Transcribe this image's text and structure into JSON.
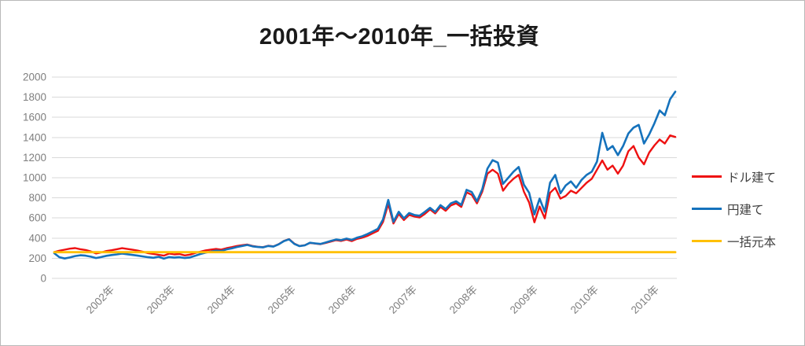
{
  "title": "2001年～2010年_一括投資",
  "colors": {
    "dollar_line": "#ee1111",
    "yen_line": "#1572bc",
    "principal_line": "#ffc000",
    "gridline": "#d9d9d9",
    "axis_text": "#7f7f7f",
    "title_text": "#1a1a1a"
  },
  "legend": [
    {
      "label": "ドル建て",
      "color": "#ee1111"
    },
    {
      "label": "円建て",
      "color": "#1572bc"
    },
    {
      "label": "一括元本",
      "color": "#ffc000"
    }
  ],
  "chart_data": {
    "type": "line",
    "title": "2001年～2010年_一括投資",
    "xlabel": "",
    "ylabel": "",
    "ylim": [
      0,
      2000
    ],
    "ytick_step": 200,
    "ytick_labels": [
      "0",
      "200",
      "400",
      "600",
      "800",
      "1000",
      "1200",
      "1400",
      "1600",
      "1800",
      "2000"
    ],
    "x_tick_labels": [
      "2002年",
      "2003年",
      "2004年",
      "2005年",
      "2006年",
      "2007年",
      "2008年",
      "2009年",
      "2010年",
      "2010年"
    ],
    "x_start": "2001-01",
    "x_end": "2010-12",
    "x_resolution": "monthly",
    "grid": "horizontal",
    "legend_position": "right",
    "series": [
      {
        "name": "ドル建て",
        "color": "#ee1111",
        "values": [
          262,
          275,
          285,
          295,
          301,
          290,
          282,
          268,
          248,
          258,
          272,
          280,
          290,
          300,
          292,
          284,
          276,
          264,
          250,
          242,
          234,
          226,
          246,
          238,
          242,
          228,
          236,
          252,
          266,
          278,
          286,
          292,
          286,
          300,
          310,
          322,
          330,
          336,
          322,
          314,
          310,
          324,
          318,
          340,
          372,
          390,
          345,
          322,
          330,
          352,
          346,
          340,
          352,
          366,
          380,
          372,
          386,
          370,
          392,
          404,
          422,
          448,
          472,
          560,
          740,
          545,
          640,
          580,
          630,
          615,
          605,
          640,
          685,
          645,
          710,
          672,
          725,
          745,
          710,
          855,
          830,
          745,
          860,
          1040,
          1080,
          1041,
          871,
          940,
          990,
          1028,
          860,
          753,
          557,
          714,
          596,
          850,
          900,
          792,
          819,
          871,
          845,
          897,
          949,
          990,
          1080,
          1172,
          1080,
          1120,
          1041,
          1120,
          1263,
          1315,
          1200,
          1133,
          1250,
          1320,
          1380,
          1340,
          1420,
          1405
        ]
      },
      {
        "name": "円建て",
        "color": "#1572bc",
        "values": [
          250,
          210,
          198,
          208,
          222,
          230,
          226,
          216,
          202,
          212,
          224,
          232,
          238,
          246,
          240,
          233,
          226,
          218,
          210,
          205,
          215,
          196,
          212,
          206,
          210,
          202,
          208,
          224,
          242,
          256,
          266,
          276,
          272,
          288,
          298,
          312,
          322,
          332,
          318,
          312,
          308,
          322,
          316,
          338,
          370,
          388,
          342,
          320,
          328,
          354,
          348,
          342,
          356,
          372,
          386,
          380,
          395,
          382,
          404,
          418,
          440,
          466,
          492,
          585,
          780,
          562,
          662,
          596,
          649,
          630,
          623,
          660,
          701,
          660,
          727,
          690,
          745,
          766,
          730,
          880,
          858,
          766,
          884,
          1090,
          1174,
          1150,
          939,
          1000,
          1060,
          1106,
          930,
          850,
          635,
          792,
          662,
          950,
          1027,
          845,
          923,
          963,
          900,
          976,
          1027,
          1060,
          1160,
          1446,
          1276,
          1315,
          1224,
          1315,
          1440,
          1498,
          1525,
          1340,
          1430,
          1540,
          1668,
          1620,
          1780,
          1855
        ]
      },
      {
        "name": "一括元本",
        "color": "#ffc000",
        "constant": 260
      }
    ]
  }
}
